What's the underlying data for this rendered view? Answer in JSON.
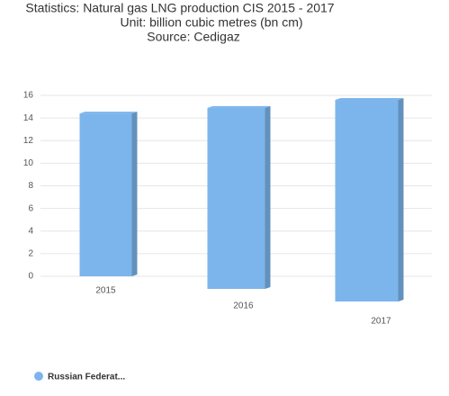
{
  "chart_data": {
    "type": "bar",
    "title": "Statistics: Natural gas LNG production CIS 2015 - 2017",
    "subtitle": "Unit: billion cubic metres (bn cm)",
    "source": "Source: Cedigaz",
    "categories": [
      "2015",
      "2016",
      "2017"
    ],
    "series": [
      {
        "name": "Russian Federat...",
        "color": "#7cb5ec",
        "values": [
          14.4,
          14.9,
          15.6
        ]
      }
    ],
    "ylim": [
      0,
      16
    ],
    "yticks": [
      0,
      2,
      4,
      6,
      8,
      10,
      12,
      14,
      16
    ],
    "grid": true
  }
}
